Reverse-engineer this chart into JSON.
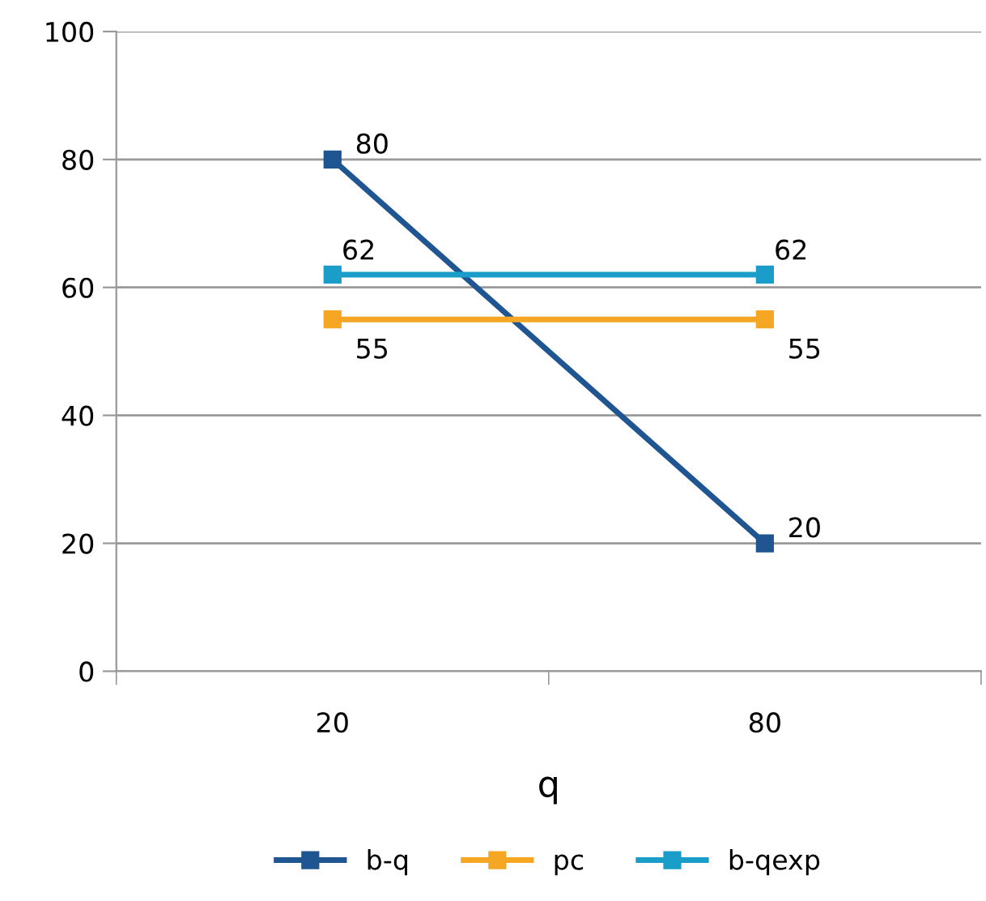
{
  "chart_data": {
    "type": "line",
    "xlabel": "q",
    "categories": [
      "20",
      "80"
    ],
    "series": [
      {
        "name": "b-q",
        "color": "#1f5591",
        "values": [
          80,
          20
        ]
      },
      {
        "name": "pc",
        "color": "#f5a623",
        "values": [
          55,
          55
        ]
      },
      {
        "name": "b-qexp",
        "color": "#1b9dc9",
        "values": [
          62,
          62
        ]
      }
    ],
    "ylim": [
      0,
      100
    ],
    "yticks": [
      0,
      20,
      40,
      60,
      80,
      100
    ],
    "grid": "y",
    "legend": "bottom",
    "marker": "square",
    "line_style": "solid",
    "data_labels": true
  }
}
